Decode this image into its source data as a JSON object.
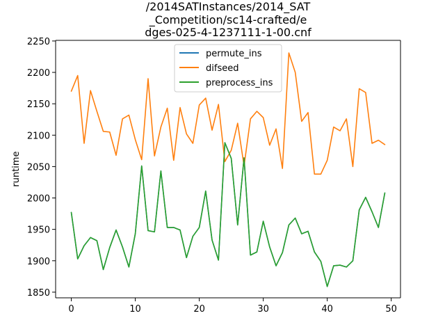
{
  "chart_data": {
    "type": "line",
    "title_lines": [
      "/2014SATInstances/2014_SAT",
      "_Competition/sc14-crafted/e",
      "dges-025-4-1237111-1-00.cnf"
    ],
    "xlabel": "",
    "ylabel": "runtime",
    "xlim": [
      -2.45,
      51.45
    ],
    "ylim": [
      1841,
      2251
    ],
    "xticks": [
      0,
      10,
      20,
      30,
      40,
      50
    ],
    "yticks": [
      1850,
      1900,
      1950,
      2000,
      2050,
      2100,
      2150,
      2200,
      2250
    ],
    "grid": false,
    "legend_position": "top-center",
    "x": [
      0,
      1,
      2,
      3,
      4,
      5,
      6,
      7,
      8,
      9,
      10,
      11,
      12,
      13,
      14,
      15,
      16,
      17,
      18,
      19,
      20,
      21,
      22,
      23,
      24,
      25,
      26,
      27,
      28,
      29,
      30,
      31,
      32,
      33,
      34,
      35,
      36,
      37,
      38,
      39,
      40,
      41,
      42,
      43,
      44,
      45,
      46,
      47,
      48,
      49
    ],
    "series": [
      {
        "name": "permute_ins",
        "color": "#1f77b4",
        "values": [
          1977,
          1903,
          1924,
          1937,
          1932,
          1886,
          1921,
          1949,
          1922,
          1890,
          1943,
          2051,
          1948,
          1946,
          2043,
          1953,
          1953,
          1949,
          1905,
          1939,
          1953,
          2011,
          1933,
          1901,
          2088,
          2063,
          1957,
          2064,
          1909,
          1914,
          1963,
          1922,
          1892,
          1913,
          1957,
          1968,
          1943,
          1947,
          1914,
          1899,
          1859,
          1892,
          1893,
          1890,
          1900,
          1981,
          2001,
          1978,
          1953,
          2008
        ]
      },
      {
        "name": "difseed",
        "color": "#ff7f0e",
        "values": [
          2170,
          2195,
          2087,
          2171,
          2138,
          2106,
          2105,
          2068,
          2126,
          2132,
          2093,
          2061,
          2190,
          2067,
          2113,
          2143,
          2060,
          2144,
          2102,
          2087,
          2148,
          2159,
          2108,
          2149,
          2058,
          2076,
          2119,
          2051,
          2126,
          2138,
          2128,
          2084,
          2110,
          2047,
          2231,
          2200,
          2122,
          2136,
          2038,
          2038,
          2060,
          2113,
          2107,
          2126,
          2050,
          2174,
          2168,
          2087,
          2092,
          2085
        ]
      },
      {
        "name": "preprocess_ins",
        "color": "#2ca02c",
        "values": [
          1977,
          1903,
          1924,
          1937,
          1932,
          1886,
          1921,
          1949,
          1922,
          1890,
          1943,
          2051,
          1948,
          1946,
          2043,
          1953,
          1953,
          1949,
          1905,
          1939,
          1953,
          2011,
          1933,
          1901,
          2088,
          2063,
          1957,
          2064,
          1909,
          1914,
          1963,
          1922,
          1892,
          1913,
          1957,
          1968,
          1943,
          1947,
          1914,
          1899,
          1859,
          1892,
          1893,
          1890,
          1900,
          1981,
          2001,
          1978,
          1953,
          2008
        ]
      }
    ]
  }
}
